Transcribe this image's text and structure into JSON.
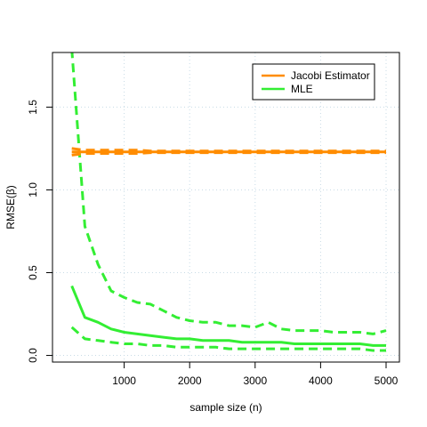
{
  "chart_data": {
    "type": "line",
    "xlabel": "sample size (n)",
    "ylabel": "RMSE(β)",
    "xlim": [
      0,
      5000
    ],
    "ylim": [
      0,
      1.8
    ],
    "x_ticks": [
      1000,
      2000,
      3000,
      4000,
      5000
    ],
    "x_tick_labels": [
      "1000",
      "2000",
      "3000",
      "4000",
      "5000"
    ],
    "y_ticks": [
      0.0,
      0.5,
      1.0,
      1.5
    ],
    "y_tick_labels": [
      "0.0",
      "0.5",
      "1.0",
      "1.5"
    ],
    "grid": "dotted",
    "legend_position": "top-right",
    "x": [
      200,
      400,
      600,
      800,
      1000,
      1200,
      1400,
      1600,
      1800,
      2000,
      2200,
      2400,
      2600,
      2800,
      3000,
      3200,
      3400,
      3600,
      3800,
      4000,
      4200,
      4400,
      4600,
      4800,
      5000
    ],
    "series": [
      {
        "name": "Jacobi Estimator",
        "color": "#ff8c00",
        "central": [
          1.23,
          1.23,
          1.23,
          1.23,
          1.23,
          1.23,
          1.23,
          1.23,
          1.23,
          1.23,
          1.23,
          1.23,
          1.23,
          1.23,
          1.23,
          1.23,
          1.23,
          1.23,
          1.23,
          1.23,
          1.23,
          1.23,
          1.23,
          1.23,
          1.23
        ],
        "upper": [
          1.25,
          1.24,
          1.24,
          1.24,
          1.24,
          1.24,
          1.235,
          1.235,
          1.235,
          1.235,
          1.235,
          1.235,
          1.235,
          1.235,
          1.235,
          1.235,
          1.235,
          1.235,
          1.235,
          1.235,
          1.235,
          1.235,
          1.235,
          1.235,
          1.235
        ],
        "lower": [
          1.21,
          1.22,
          1.22,
          1.22,
          1.22,
          1.22,
          1.225,
          1.225,
          1.225,
          1.225,
          1.225,
          1.225,
          1.225,
          1.225,
          1.225,
          1.225,
          1.225,
          1.225,
          1.225,
          1.225,
          1.225,
          1.225,
          1.225,
          1.225,
          1.225
        ]
      },
      {
        "name": "MLE",
        "color": "#33ee33",
        "central": [
          0.42,
          0.23,
          0.2,
          0.16,
          0.14,
          0.13,
          0.12,
          0.11,
          0.1,
          0.1,
          0.09,
          0.09,
          0.09,
          0.08,
          0.08,
          0.08,
          0.08,
          0.07,
          0.07,
          0.07,
          0.07,
          0.07,
          0.07,
          0.06,
          0.06
        ],
        "upper": [
          1.85,
          0.78,
          0.55,
          0.39,
          0.35,
          0.32,
          0.31,
          0.27,
          0.23,
          0.21,
          0.2,
          0.2,
          0.18,
          0.18,
          0.17,
          0.2,
          0.16,
          0.15,
          0.15,
          0.15,
          0.14,
          0.14,
          0.14,
          0.13,
          0.15
        ],
        "lower": [
          0.17,
          0.1,
          0.09,
          0.08,
          0.07,
          0.07,
          0.06,
          0.06,
          0.05,
          0.05,
          0.05,
          0.05,
          0.04,
          0.04,
          0.04,
          0.04,
          0.04,
          0.04,
          0.04,
          0.04,
          0.04,
          0.04,
          0.04,
          0.03,
          0.03
        ]
      }
    ]
  }
}
